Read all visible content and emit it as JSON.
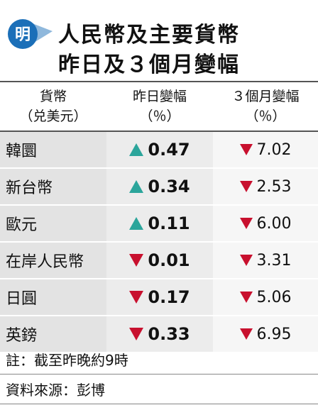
{
  "header": {
    "logo": "明",
    "title": [
      "人民幣及主要貨幣",
      "昨日及３個月變幅"
    ]
  },
  "table": {
    "columns": [
      [
        "貨幣",
        "（兑美元）"
      ],
      [
        "昨日變幅",
        "（％）"
      ],
      [
        "３個月變幅",
        "（％）"
      ]
    ],
    "up_color": "#2ba59b",
    "down_color": "#c8102e",
    "rows": [
      {
        "currency": "韓圜",
        "day": "0.47",
        "day_direction": "up",
        "three_month": "7.02",
        "three_month_direction": "down"
      },
      {
        "currency": "新台幣",
        "day": "0.34",
        "day_direction": "up",
        "three_month": "2.53",
        "three_month_direction": "down"
      },
      {
        "currency": "歐元",
        "day": "0.11",
        "day_direction": "up",
        "three_month": "6.00",
        "three_month_direction": "down"
      },
      {
        "currency": "在岸人民幣",
        "day": "0.01",
        "day_direction": "down",
        "three_month": "3.31",
        "three_month_direction": "down"
      },
      {
        "currency": "日圓",
        "day": "0.17",
        "day_direction": "down",
        "three_month": "5.06",
        "three_month_direction": "down"
      },
      {
        "currency": "英鎊",
        "day": "0.33",
        "day_direction": "down",
        "three_month": "6.95",
        "three_month_direction": "down"
      }
    ]
  },
  "footer": {
    "note": "註：截至昨晚約9時",
    "source": "資料來源：彭博"
  }
}
